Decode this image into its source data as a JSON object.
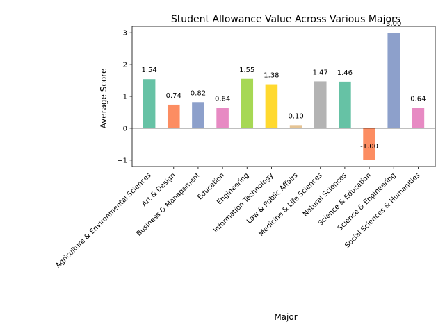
{
  "chart_data": {
    "type": "bar",
    "title": "Student Allowance Value Across Various Majors",
    "xlabel": "Major",
    "ylabel": "Average Score",
    "categories": [
      "Agriculture & Environmental Sciences",
      "Art & Design",
      "Business & Management",
      "Education",
      "Engineering",
      "Information Technology",
      "Law & Public Affairs",
      "Medicine & Life Sciences",
      "Natural Sciences",
      "Science & Education",
      "Science & Engineering",
      "Social Sciences & Humanities"
    ],
    "values": [
      1.54,
      0.74,
      0.82,
      0.64,
      1.55,
      1.38,
      0.1,
      1.47,
      1.46,
      -1.0,
      3.0,
      0.64
    ],
    "value_labels": [
      "1.54",
      "0.74",
      "0.82",
      "0.64",
      "1.55",
      "1.38",
      "0.10",
      "1.47",
      "1.46",
      "-1.00",
      "3.00",
      "0.64"
    ],
    "colors": [
      "#66c2a5",
      "#fc8d62",
      "#8da0cb",
      "#e78ac3",
      "#a6d854",
      "#ffd92f",
      "#e5c494",
      "#b3b3b3",
      "#66c2a5",
      "#fc8d62",
      "#8da0cb",
      "#e78ac3"
    ],
    "ylim": [
      -1.2,
      3.2
    ],
    "yticks": [
      -1,
      0,
      1,
      2,
      3
    ],
    "ytick_labels": [
      "−1",
      "0",
      "1",
      "2",
      "3"
    ],
    "grid": false,
    "zero_line": true
  }
}
